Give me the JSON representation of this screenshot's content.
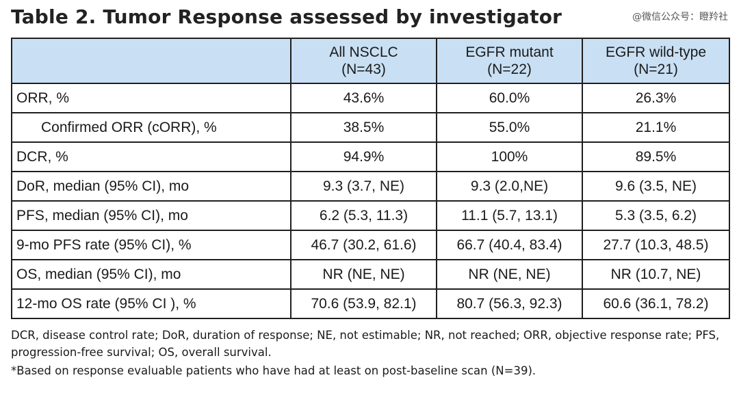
{
  "title": "Table 2. Tumor Response assessed by investigator",
  "watermark": "@微信公众号：瞪羚社",
  "table": {
    "headers": [
      {
        "line1": "",
        "line2": ""
      },
      {
        "line1": "All NSCLC",
        "line2": "(N=43)"
      },
      {
        "line1": "EGFR mutant",
        "line2": "(N=22)"
      },
      {
        "line1": "EGFR wild-type",
        "line2": "(N=21)"
      }
    ],
    "rows": [
      {
        "label": "ORR, %",
        "indent": false,
        "cells": [
          "43.6%",
          "60.0%",
          "26.3%"
        ]
      },
      {
        "label": "Confirmed ORR (cORR), %",
        "indent": true,
        "cells": [
          "38.5%",
          "55.0%",
          "21.1%"
        ]
      },
      {
        "label": "DCR, %",
        "indent": false,
        "cells": [
          "94.9%",
          "100%",
          "89.5%"
        ]
      },
      {
        "label": "DoR, median (95% CI), mo",
        "indent": false,
        "cells": [
          "9.3 (3.7, NE)",
          "9.3 (2.0,NE)",
          "9.6 (3.5, NE)"
        ]
      },
      {
        "label": "PFS, median (95% CI), mo",
        "indent": false,
        "cells": [
          "6.2 (5.3, 11.3)",
          "11.1 (5.7, 13.1)",
          "5.3 (3.5, 6.2)"
        ]
      },
      {
        "label": "9-mo PFS rate (95% CI), %",
        "indent": false,
        "cells": [
          "46.7 (30.2, 61.6)",
          "66.7 (40.4, 83.4)",
          "27.7 (10.3, 48.5)"
        ]
      },
      {
        "label": "OS, median (95% CI), mo",
        "indent": false,
        "cells": [
          "NR (NE, NE)",
          "NR (NE, NE)",
          "NR (10.7, NE)"
        ]
      },
      {
        "label": "12-mo OS rate (95% CI ), %",
        "indent": false,
        "cells": [
          "70.6 (53.9, 82.1)",
          "80.7 (56.3, 92.3)",
          "60.6 (36.1, 78.2)"
        ]
      }
    ]
  },
  "notes": {
    "abbreviations": "DCR, disease control rate; DoR, duration of response; NE, not estimable; NR, not reached; ORR, objective response rate; PFS, progression-free survival; OS, overall survival.",
    "footnote": "*Based on response evaluable patients who have had at least on post-baseline scan (N=39)."
  },
  "colors": {
    "header_background": "#c9dff3",
    "border": "#1f1f1f"
  }
}
